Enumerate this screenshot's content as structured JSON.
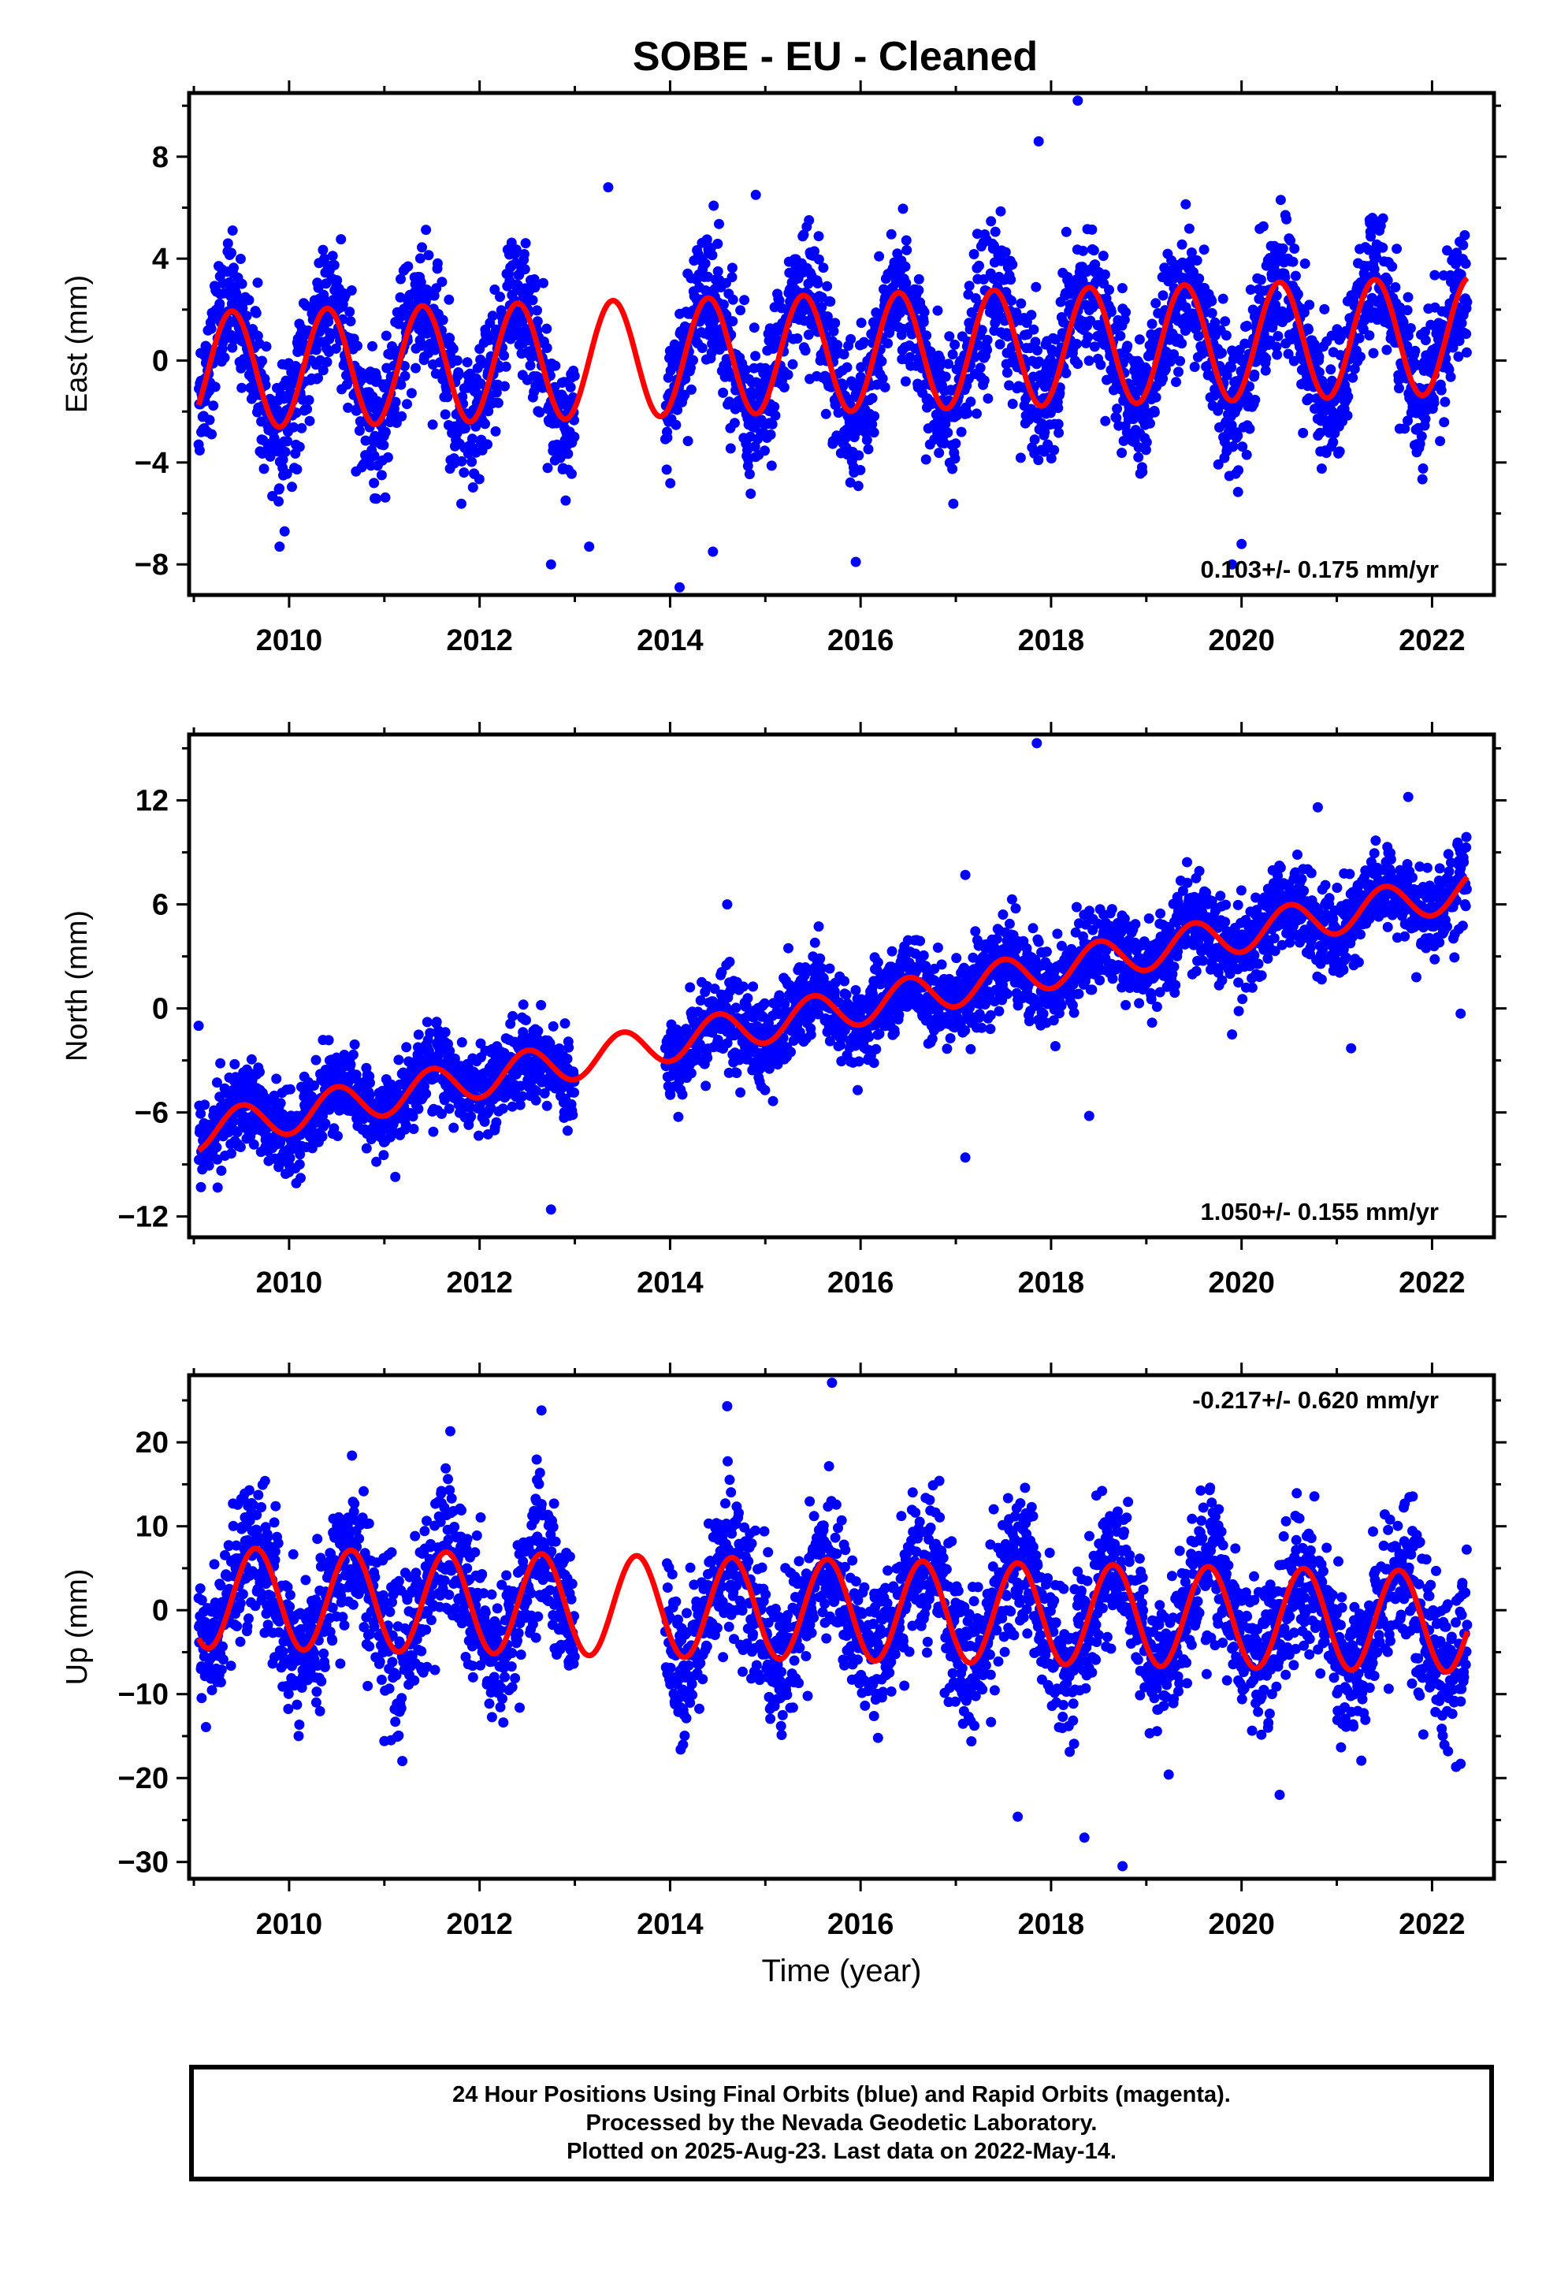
{
  "title": "SOBE  - EU - Cleaned",
  "footer": {
    "line1": "24 Hour Positions Using Final Orbits (blue) and Rapid Orbits (magenta).",
    "line2": "Processed by the Nevada Geodetic Laboratory.",
    "line3": "Plotted on 2025-Aug-23. Last data on 2022-May-14."
  },
  "colors": {
    "data_points": "#0000ff",
    "model_curve": "#ff0000",
    "frame": "#000000"
  },
  "chart_data": [
    {
      "type": "scatter",
      "ylabel": "East (mm)",
      "xlabel": "",
      "xlim": [
        2008.95,
        2022.65
      ],
      "ylim": [
        -9.2,
        10.5
      ],
      "xticks": [
        2010,
        2012,
        2014,
        2016,
        2018,
        2020,
        2022
      ],
      "yticks": [
        -8,
        -4,
        0,
        4,
        8
      ],
      "rate_label": "0.103+/- 0.175 mm/yr",
      "rate_position": "bottom-right",
      "data_span": [
        2009.05,
        2022.37
      ],
      "gaps": [
        [
          2013.0,
          2013.95
        ]
      ],
      "model": {
        "rate": 0.103,
        "offset": -0.4,
        "annual_amplitude": 2.3,
        "phase_peak": 0.4
      },
      "scatter_sigma": 1.3,
      "outliers": [
        [
          2017.87,
          8.6
        ],
        [
          2018.28,
          10.2
        ],
        [
          2013.35,
          6.8
        ],
        [
          2014.9,
          6.5
        ],
        [
          2014.1,
          -8.9
        ],
        [
          2019.9,
          -8.0
        ],
        [
          2020.0,
          -7.2
        ],
        [
          2015.95,
          -7.9
        ],
        [
          2012.75,
          -8.0
        ],
        [
          2009.9,
          -7.3
        ],
        [
          2013.15,
          -7.3
        ],
        [
          2014.45,
          -7.5
        ]
      ]
    },
    {
      "type": "scatter",
      "ylabel": "North (mm)",
      "xlabel": "",
      "xlim": [
        2008.95,
        2022.65
      ],
      "ylim": [
        -13.2,
        15.8
      ],
      "xticks": [
        2010,
        2012,
        2014,
        2016,
        2018,
        2020,
        2022
      ],
      "yticks": [
        -12,
        -6,
        0,
        6,
        12
      ],
      "rate_label": "1.050+/- 0.155 mm/yr",
      "rate_position": "bottom-right",
      "data_span": [
        2009.05,
        2022.37
      ],
      "gaps": [
        [
          2013.0,
          2013.95
        ]
      ],
      "model": {
        "rate": 1.05,
        "offset": -7.2,
        "annual_amplitude": 1.1,
        "phase_peak": 0.5
      },
      "scatter_sigma": 1.2,
      "outliers": [
        [
          2017.85,
          15.3
        ],
        [
          2020.8,
          11.6
        ],
        [
          2021.75,
          12.2
        ],
        [
          2014.6,
          6.0
        ],
        [
          2017.1,
          7.7
        ],
        [
          2012.75,
          -11.6
        ],
        [
          2017.1,
          -8.6
        ],
        [
          2018.4,
          -6.2
        ],
        [
          2009.05,
          -1.0
        ],
        [
          2021.15,
          -2.3
        ],
        [
          2022.3,
          -0.3
        ],
        [
          2019.9,
          -1.5
        ]
      ]
    },
    {
      "type": "scatter",
      "ylabel": "Up (mm)",
      "xlabel": "Time (year)",
      "xlim": [
        2008.95,
        2022.65
      ],
      "ylim": [
        -32,
        28
      ],
      "xticks": [
        2010,
        2012,
        2014,
        2016,
        2018,
        2020,
        2022
      ],
      "yticks": [
        -30,
        -20,
        -10,
        0,
        10,
        20
      ],
      "rate_label": "-0.217+/- 0.620 mm/yr",
      "rate_position": "top-right",
      "data_span": [
        2009.05,
        2022.37
      ],
      "gaps": [
        [
          2013.0,
          2013.95
        ]
      ],
      "model": {
        "rate": -0.217,
        "offset": 1.5,
        "annual_amplitude": 6.0,
        "phase_peak": 0.65
      },
      "scatter_sigma": 4.2,
      "outliers": [
        [
          2015.7,
          27.1
        ],
        [
          2014.6,
          24.3
        ],
        [
          2012.65,
          23.8
        ],
        [
          2017.65,
          -24.6
        ],
        [
          2018.35,
          -27.1
        ],
        [
          2018.75,
          -30.5
        ],
        [
          2020.4,
          -22.0
        ],
        [
          2010.1,
          -15.0
        ],
        [
          2011.0,
          -15.6
        ],
        [
          2022.3,
          -18.3
        ]
      ]
    }
  ]
}
